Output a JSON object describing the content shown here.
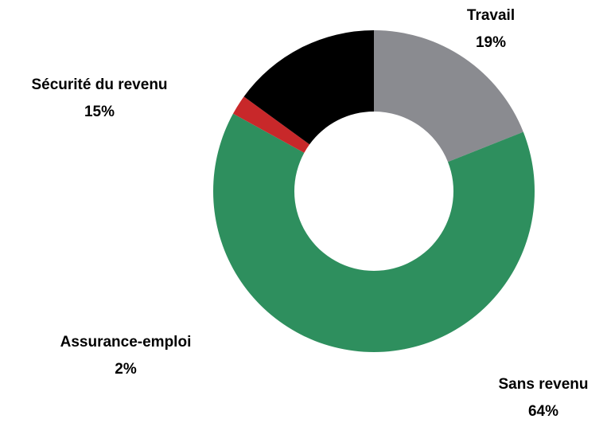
{
  "chart_data": {
    "type": "pie",
    "categories": [
      "Travail",
      "Sans revenu",
      "Assurance-emploi",
      "Sécurité du revenu"
    ],
    "values": [
      19,
      64,
      2,
      15
    ],
    "value_labels": [
      "19%",
      "64%",
      "2%",
      "15%"
    ],
    "colors": [
      "#8a8b90",
      "#2e8f5e",
      "#c8282a",
      "#000000"
    ],
    "donut": true
  }
}
